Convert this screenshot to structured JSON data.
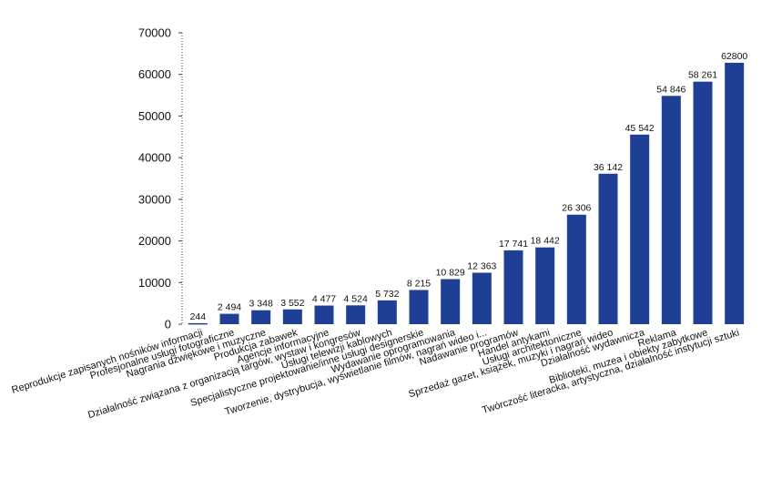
{
  "chart_data": {
    "type": "bar",
    "title": "",
    "xlabel": "",
    "ylabel": "",
    "ylim": [
      0,
      70000
    ],
    "yticks": [
      0,
      10000,
      20000,
      30000,
      40000,
      50000,
      60000,
      70000
    ],
    "ytick_labels": [
      "0",
      "10000",
      "20000",
      "30000",
      "40000",
      "50000",
      "60000",
      "70000"
    ],
    "grid": false,
    "bar_color": "#1f3f94",
    "categories": [
      "Reprodukcje zapisanych nośników informacji",
      "Profesjonalne usługi fotograficzne",
      "Nagrania dźwiękowe i muzyczne",
      "Produkcja zabawek",
      "Agencje informacyjne",
      "Działalność związana z organizacją targów, wystaw i kongresów",
      "Usługi telewizji kablowych",
      "Specjalistyczne projektowanie/inne usługi designerskie",
      "Wydawanie oprogramowania",
      "Tworzenie, dystrybucja, wyświetlanie filmów, nagrań wideo i...",
      "Nadawanie programów",
      "Handel antykami",
      "Usługi architektoniczne",
      "Sprzedaż gazet, książek, muzyki i nagrań wideo",
      "Działalność wydawnicza",
      "Reklama",
      "Biblioteki, muzea i obiekty zabytkowe",
      "Twórczość literacka, artystyczna, działalność instytucji sztuki"
    ],
    "values": [
      244,
      2494,
      3348,
      3552,
      4477,
      4524,
      5732,
      8215,
      10829,
      12363,
      17741,
      18442,
      26306,
      36142,
      45542,
      54846,
      58261,
      62800
    ],
    "value_labels": [
      "244",
      "2 494",
      "3 348",
      "3 552",
      "4 477",
      "4 524",
      "5 732",
      "8 215",
      "10 829",
      "12 363",
      "17 741",
      "18 442",
      "26 306",
      "36 142",
      "45 542",
      "54 846",
      "58 261",
      "62800"
    ]
  }
}
